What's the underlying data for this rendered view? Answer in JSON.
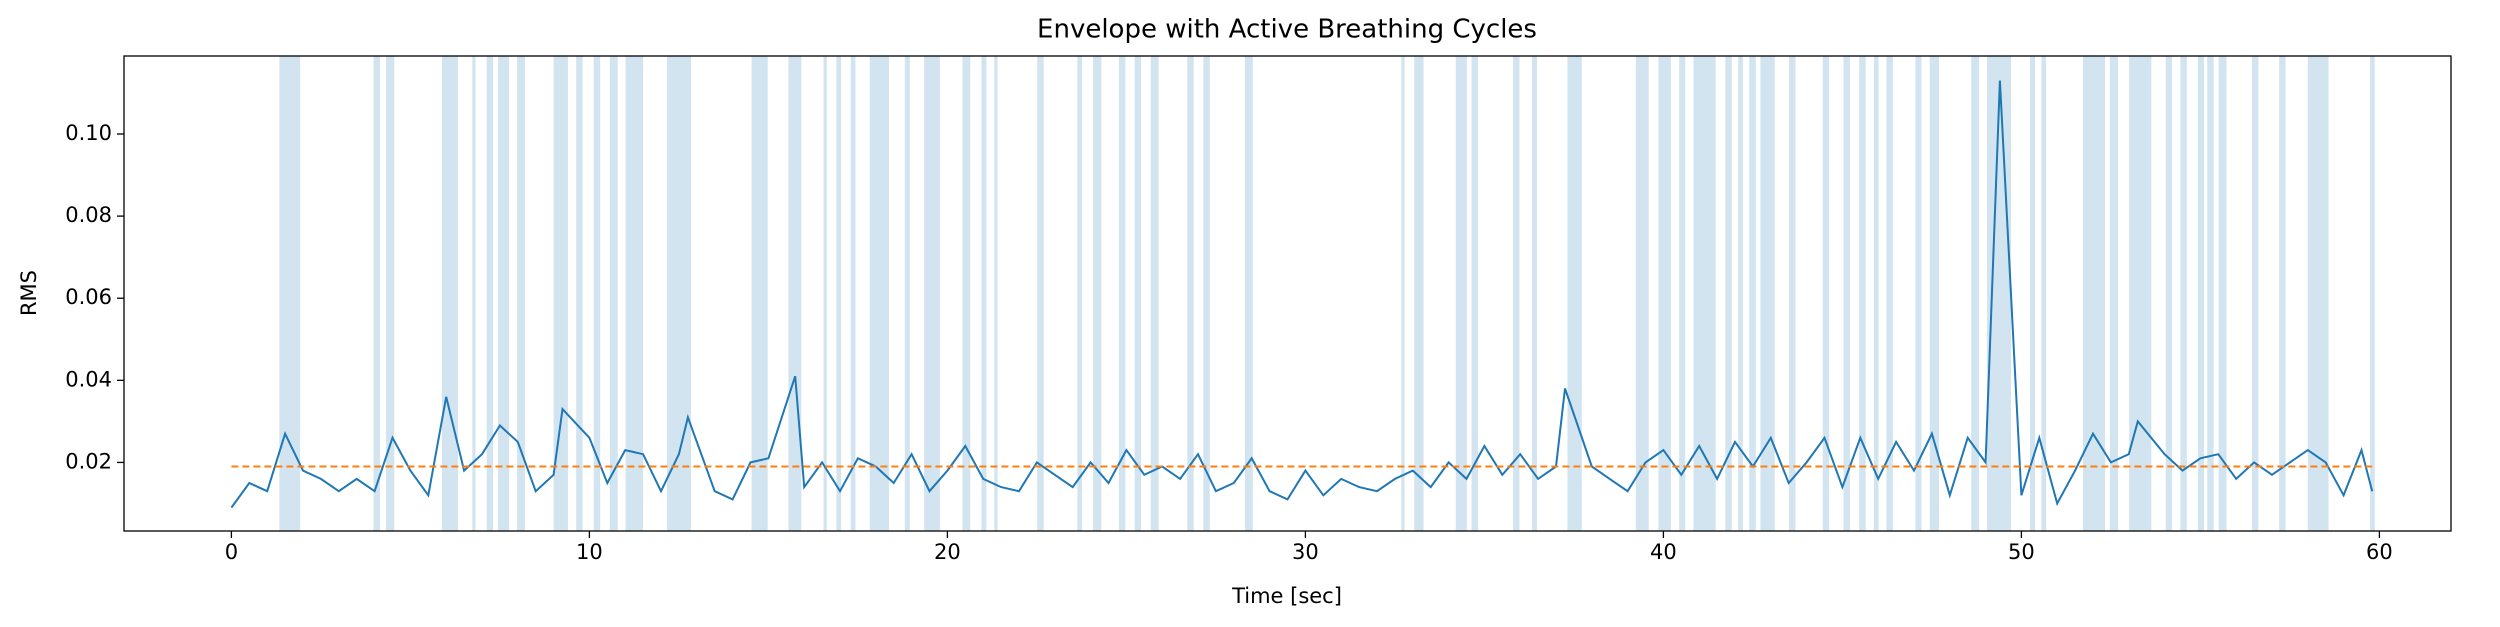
{
  "chart_data": {
    "type": "line",
    "title": "Envelope with Active Breathing Cycles",
    "xlabel": "Time [sec]",
    "ylabel": "RMS",
    "xlim": [
      -3.0,
      62.0
    ],
    "ylim": [
      0.0033,
      0.119
    ],
    "xticks": [
      0,
      10,
      20,
      30,
      40,
      50,
      60
    ],
    "yticks": [
      0.02,
      0.04,
      0.06,
      0.08,
      {
        "value": 0.1,
        "label": "0.10"
      }
    ],
    "span_color": "#1f77b4",
    "spans": [
      [
        1.34,
        1.92
      ],
      [
        3.97,
        4.15
      ],
      [
        4.32,
        4.55
      ],
      [
        5.88,
        6.33
      ],
      [
        6.73,
        6.82
      ],
      [
        7.13,
        7.31
      ],
      [
        7.45,
        7.76
      ],
      [
        7.98,
        8.2
      ],
      [
        9.0,
        9.4
      ],
      [
        9.63,
        9.81
      ],
      [
        10.12,
        10.3
      ],
      [
        10.57,
        10.79
      ],
      [
        11.01,
        11.5
      ],
      [
        12.17,
        12.84
      ],
      [
        14.53,
        14.98
      ],
      [
        15.56,
        15.92
      ],
      [
        16.54,
        16.63
      ],
      [
        16.9,
        17.03
      ],
      [
        17.3,
        17.43
      ],
      [
        17.83,
        18.37
      ],
      [
        18.81,
        18.95
      ],
      [
        19.35,
        19.79
      ],
      [
        20.42,
        20.64
      ],
      [
        20.95,
        21.09
      ],
      [
        21.31,
        21.4
      ],
      [
        22.51,
        22.69
      ],
      [
        23.63,
        23.76
      ],
      [
        24.07,
        24.3
      ],
      [
        24.79,
        24.97
      ],
      [
        25.23,
        25.41
      ],
      [
        25.68,
        25.9
      ],
      [
        26.7,
        26.88
      ],
      [
        27.15,
        27.33
      ],
      [
        28.31,
        28.53
      ],
      [
        32.68,
        32.77
      ],
      [
        33.04,
        33.3
      ],
      [
        34.2,
        34.51
      ],
      [
        34.64,
        34.82
      ],
      [
        35.8,
        35.98
      ],
      [
        36.33,
        36.47
      ],
      [
        37.32,
        37.72
      ],
      [
        39.23,
        39.59
      ],
      [
        39.86,
        40.21
      ],
      [
        40.44,
        40.61
      ],
      [
        40.84,
        41.46
      ],
      [
        41.73,
        41.91
      ],
      [
        42.09,
        42.22
      ],
      [
        42.4,
        42.58
      ],
      [
        42.71,
        43.11
      ],
      [
        43.51,
        43.69
      ],
      [
        44.45,
        44.63
      ],
      [
        45.03,
        45.21
      ],
      [
        45.47,
        45.65
      ],
      [
        45.88,
        46.01
      ],
      [
        46.23,
        46.41
      ],
      [
        47.04,
        47.21
      ],
      [
        47.44,
        47.7
      ],
      [
        48.6,
        48.82
      ],
      [
        49.04,
        49.71
      ],
      [
        50.24,
        50.38
      ],
      [
        50.56,
        50.69
      ],
      [
        51.72,
        52.34
      ],
      [
        52.47,
        52.7
      ],
      [
        53.01,
        53.63
      ],
      [
        54.03,
        54.21
      ],
      [
        54.44,
        54.62
      ],
      [
        54.93,
        55.1
      ],
      [
        55.19,
        55.37
      ],
      [
        55.51,
        55.73
      ],
      [
        56.44,
        56.62
      ],
      [
        57.2,
        57.38
      ],
      [
        58.0,
        58.58
      ],
      [
        59.74,
        59.87
      ]
    ],
    "series": [
      {
        "color": "#1f77b4",
        "x": [
          0,
          0.5,
          1,
          1.5,
          2,
          2.5,
          3,
          3.5,
          4,
          4.5,
          5,
          5.5,
          6,
          6.5,
          7,
          7.5,
          8,
          8.5,
          9,
          9.25,
          10,
          10.5,
          11,
          11.5,
          12,
          12.5,
          12.75,
          13.5,
          14,
          14.5,
          15,
          15.75,
          16,
          16.5,
          17,
          17.5,
          18,
          18.5,
          19,
          19.5,
          20,
          20.5,
          21,
          21.5,
          22,
          22.5,
          23,
          23.5,
          24,
          24.5,
          25,
          25.5,
          26,
          26.5,
          27,
          27.5,
          28,
          28.5,
          29,
          29.5,
          30,
          30.5,
          31,
          31.5,
          32,
          32.5,
          33,
          33.5,
          34,
          34.5,
          35,
          35.5,
          36,
          36.5,
          37,
          37.25,
          38,
          38.5,
          39,
          39.5,
          40,
          40.5,
          41,
          41.5,
          42,
          42.5,
          43,
          43.5,
          44,
          44.5,
          45,
          45.5,
          46,
          46.5,
          47,
          47.5,
          48,
          48.5,
          49,
          49.4,
          50,
          50.5,
          51,
          51.5,
          52,
          52.5,
          53,
          53.25,
          54,
          54.5,
          55,
          55.5,
          56,
          56.5,
          57,
          57.5,
          58,
          58.5,
          59,
          59.5,
          59.8
        ],
        "values": [
          0.009,
          0.015,
          0.013,
          0.027,
          0.018,
          0.016,
          0.013,
          0.016,
          0.013,
          0.026,
          0.018,
          0.012,
          0.036,
          0.018,
          0.022,
          0.029,
          0.025,
          0.013,
          0.017,
          0.033,
          0.026,
          0.015,
          0.023,
          0.022,
          0.013,
          0.022,
          0.031,
          0.013,
          0.011,
          0.02,
          0.021,
          0.041,
          0.014,
          0.02,
          0.013,
          0.021,
          0.019,
          0.015,
          0.022,
          0.013,
          0.018,
          0.024,
          0.016,
          0.014,
          0.013,
          0.02,
          0.017,
          0.014,
          0.02,
          0.015,
          0.023,
          0.017,
          0.019,
          0.016,
          0.022,
          0.013,
          0.015,
          0.021,
          0.013,
          0.011,
          0.018,
          0.012,
          0.016,
          0.014,
          0.013,
          0.016,
          0.018,
          0.014,
          0.02,
          0.016,
          0.024,
          0.017,
          0.022,
          0.016,
          0.019,
          0.038,
          0.019,
          0.016,
          0.013,
          0.02,
          0.023,
          0.017,
          0.024,
          0.016,
          0.025,
          0.019,
          0.026,
          0.015,
          0.02,
          0.026,
          0.014,
          0.026,
          0.016,
          0.025,
          0.018,
          0.027,
          0.012,
          0.026,
          0.02,
          0.113,
          0.012,
          0.026,
          0.01,
          0.018,
          0.027,
          0.02,
          0.022,
          0.03,
          0.022,
          0.018,
          0.021,
          0.022,
          0.016,
          0.02,
          0.017,
          0.02,
          0.023,
          0.02,
          0.012,
          0.023,
          0.013
        ]
      },
      {
        "color": "#ff7f0e",
        "dash": true,
        "x": [
          0,
          59.8
        ],
        "values": [
          0.019,
          0.019
        ]
      }
    ]
  }
}
